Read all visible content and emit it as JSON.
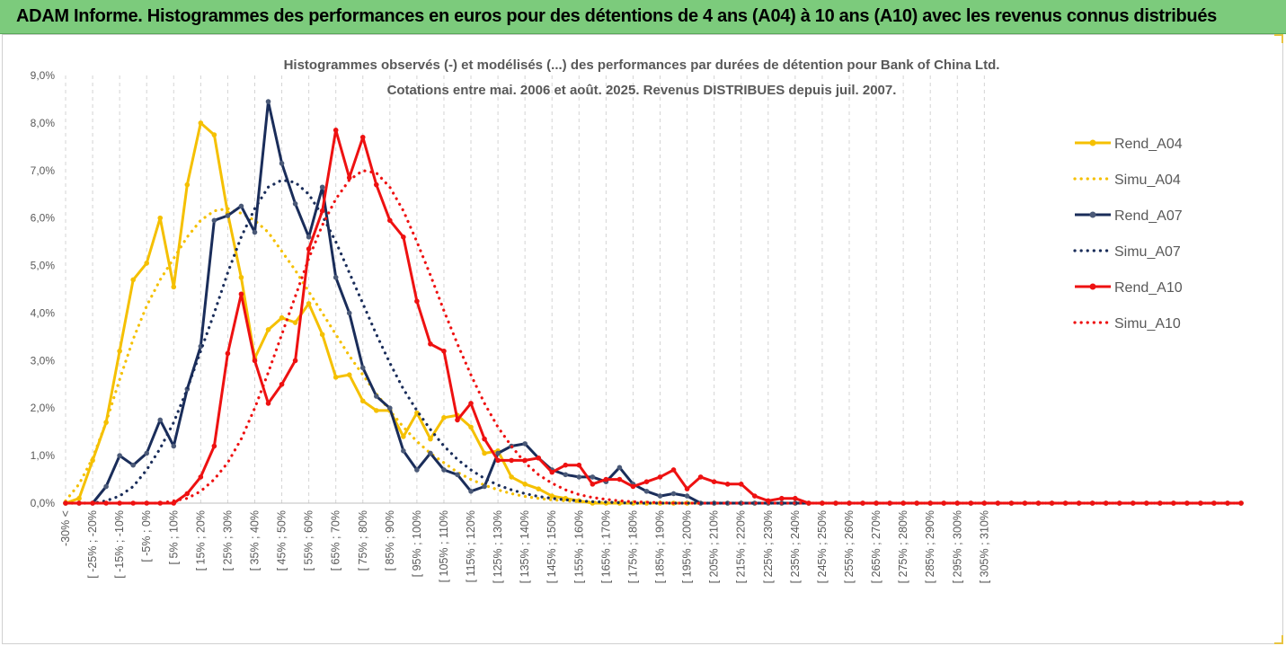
{
  "banner": {
    "title": "ADAM Informe. Histogrammes des performances en euros pour des détentions de 4 ans (A04) à 10 ans (A10) avec les revenus connus distribués",
    "background": "#7ccb7c"
  },
  "chart_data": {
    "type": "line",
    "title_lines": [
      "Histogrammes observés (-) et modélisés (...) des performances par durées de détention pour Bank of China Ltd.",
      "Cotations entre mai. 2006 et août. 2025. Revenus DISTRIBUES depuis juil. 2007."
    ],
    "ylim": [
      0,
      9
    ],
    "y_ticks": [
      "0,0%",
      "1,0%",
      "2,0%",
      "3,0%",
      "4,0%",
      "5,0%",
      "6,0%",
      "7,0%",
      "8,0%",
      "9,0%"
    ],
    "x_tick_labels": [
      "-30% <",
      "[ -25% ; -20%",
      "[ -15% ; -10%",
      "[ -5% ; 0%",
      "[ 5% ; 10%",
      "[ 15% ; 20%",
      "[ 25% ; 30%",
      "[ 35% ; 40%",
      "[ 45% ; 50%",
      "[ 55% ; 60%",
      "[ 65% ; 70%",
      "[ 75% ; 80%",
      "[ 85% ; 90%",
      "[ 95% ; 100%",
      "[ 105% ; 110%",
      "[ 115% ; 120%",
      "[ 125% ; 130%",
      "[ 135% ; 140%",
      "[ 145% ; 150%",
      "[ 155% ; 160%",
      "[ 165% ; 170%",
      "[ 175% ; 180%",
      "[ 185% ; 190%",
      "[ 195% ; 200%",
      "[ 205% ; 210%",
      "[ 215% ; 220%",
      "[ 225% ; 230%",
      "[ 235% ; 240%",
      "[ 245% ; 250%",
      "[ 255% ; 260%",
      "[ 265% ; 270%",
      "[ 275% ; 280%",
      "[ 285% ; 290%",
      "[ 295% ; 300%",
      "[ 305% ; 310%"
    ],
    "legend_position": "right",
    "grid": "vertical-dashed",
    "series": [
      {
        "name": "Rend_A04",
        "style": "solid",
        "color": "#f5c000",
        "values": [
          0,
          0.1,
          0.9,
          1.7,
          3.2,
          4.7,
          5.05,
          6.0,
          4.55,
          6.7,
          8.0,
          7.75,
          6.1,
          4.75,
          3.05,
          3.65,
          3.9,
          3.8,
          4.2,
          3.55,
          2.65,
          2.7,
          2.15,
          1.95,
          1.95,
          1.4,
          1.9,
          1.35,
          1.8,
          1.85,
          1.6,
          1.05,
          1.1,
          0.55,
          0.4,
          0.3,
          0.15,
          0.1,
          0.05,
          0,
          0,
          0,
          0,
          0,
          0,
          0,
          0,
          0,
          0,
          0,
          0,
          0,
          0,
          0,
          0,
          0,
          0,
          0,
          0,
          0,
          0,
          0,
          0,
          0,
          0,
          0,
          0,
          0,
          0,
          0,
          0,
          0,
          0,
          0,
          0,
          0,
          0,
          0,
          0,
          0,
          0,
          0,
          0,
          0,
          0,
          0,
          0,
          0
        ]
      },
      {
        "name": "Simu_A04",
        "style": "dotted",
        "color": "#f5c000",
        "values": [
          0.05,
          0.4,
          0.95,
          1.7,
          2.6,
          3.45,
          4.15,
          4.7,
          5.15,
          5.6,
          5.95,
          6.15,
          6.2,
          6.1,
          5.95,
          5.7,
          5.3,
          4.9,
          4.45,
          4.0,
          3.55,
          3.1,
          2.7,
          2.3,
          1.95,
          1.6,
          1.3,
          1.05,
          0.85,
          0.65,
          0.5,
          0.38,
          0.28,
          0.2,
          0.14,
          0.1,
          0.07,
          0.05,
          0.03,
          0.02,
          0.01,
          0,
          0,
          0,
          0,
          0,
          0,
          0,
          0,
          0,
          0,
          0,
          0,
          0,
          0,
          0,
          0,
          0,
          0,
          0,
          0,
          0,
          0,
          0,
          0,
          0,
          0,
          0,
          0,
          0,
          0,
          0,
          0,
          0,
          0,
          0,
          0,
          0,
          0,
          0,
          0,
          0,
          0,
          0,
          0,
          0,
          0,
          0
        ]
      },
      {
        "name": "Rend_A07",
        "style": "solid",
        "color": "#1a2d5a",
        "values": [
          0,
          0,
          0,
          0.35,
          1.0,
          0.8,
          1.05,
          1.75,
          1.2,
          2.4,
          3.3,
          5.95,
          6.05,
          6.25,
          5.7,
          8.45,
          7.15,
          6.3,
          5.6,
          6.65,
          4.75,
          4.0,
          2.85,
          2.25,
          2.0,
          1.1,
          0.7,
          1.05,
          0.7,
          0.6,
          0.25,
          0.35,
          1.05,
          1.2,
          1.25,
          0.95,
          0.7,
          0.6,
          0.55,
          0.55,
          0.45,
          0.75,
          0.4,
          0.25,
          0.15,
          0.2,
          0.15,
          0.0,
          0,
          0,
          0,
          0,
          0,
          0,
          0,
          0,
          0,
          0,
          0,
          0,
          0,
          0,
          0,
          0,
          0,
          0,
          0,
          0,
          0,
          0,
          0,
          0,
          0,
          0,
          0,
          0,
          0,
          0,
          0,
          0,
          0,
          0,
          0,
          0,
          0,
          0,
          0,
          0
        ]
      },
      {
        "name": "Simu_A07",
        "style": "dotted",
        "color": "#1a2d5a",
        "values": [
          0,
          0,
          0,
          0.05,
          0.15,
          0.35,
          0.7,
          1.15,
          1.7,
          2.4,
          3.2,
          4.0,
          4.85,
          5.6,
          6.2,
          6.65,
          6.8,
          6.75,
          6.5,
          6.05,
          5.5,
          4.85,
          4.2,
          3.55,
          2.95,
          2.4,
          1.95,
          1.55,
          1.2,
          0.92,
          0.7,
          0.52,
          0.38,
          0.28,
          0.2,
          0.14,
          0.1,
          0.07,
          0.05,
          0.03,
          0.02,
          0.01,
          0,
          0,
          0,
          0,
          0,
          0,
          0,
          0,
          0,
          0,
          0,
          0,
          0,
          0,
          0,
          0,
          0,
          0,
          0,
          0,
          0,
          0,
          0,
          0,
          0,
          0,
          0,
          0,
          0,
          0,
          0,
          0,
          0,
          0,
          0,
          0,
          0,
          0,
          0,
          0,
          0,
          0,
          0,
          0,
          0,
          0
        ]
      },
      {
        "name": "Rend_A10",
        "style": "solid",
        "color": "#ee1111",
        "values": [
          0,
          0,
          0,
          0,
          0,
          0,
          0,
          0,
          0,
          0.2,
          0.55,
          1.2,
          3.15,
          4.4,
          3.0,
          2.1,
          2.5,
          3.0,
          5.35,
          6.15,
          7.85,
          6.85,
          7.7,
          6.7,
          5.95,
          5.6,
          4.25,
          3.35,
          3.2,
          1.75,
          2.1,
          1.35,
          0.9,
          0.9,
          0.9,
          0.95,
          0.65,
          0.8,
          0.8,
          0.4,
          0.5,
          0.5,
          0.35,
          0.45,
          0.55,
          0.7,
          0.3,
          0.55,
          0.45,
          0.4,
          0.4,
          0.15,
          0.05,
          0.1,
          0.1,
          0.0,
          0,
          0,
          0,
          0,
          0,
          0,
          0,
          0,
          0,
          0,
          0,
          0,
          0,
          0,
          0,
          0,
          0,
          0,
          0,
          0,
          0,
          0,
          0,
          0,
          0,
          0,
          0,
          0,
          0,
          0,
          0,
          0
        ]
      },
      {
        "name": "Simu_A10",
        "style": "dotted",
        "color": "#ee1111",
        "values": [
          0,
          0,
          0,
          0,
          0,
          0,
          0,
          0,
          0.05,
          0.1,
          0.25,
          0.5,
          0.85,
          1.35,
          2.0,
          2.75,
          3.55,
          4.35,
          5.15,
          5.85,
          6.4,
          6.8,
          7.0,
          6.95,
          6.65,
          6.15,
          5.5,
          4.8,
          4.05,
          3.35,
          2.7,
          2.1,
          1.6,
          1.2,
          0.85,
          0.6,
          0.42,
          0.28,
          0.18,
          0.12,
          0.08,
          0.05,
          0.03,
          0.02,
          0.01,
          0,
          0,
          0,
          0,
          0,
          0,
          0,
          0,
          0,
          0,
          0,
          0,
          0,
          0,
          0,
          0,
          0,
          0,
          0,
          0,
          0,
          0,
          0,
          0,
          0,
          0,
          0,
          0,
          0,
          0,
          0,
          0,
          0,
          0,
          0,
          0,
          0,
          0,
          0,
          0,
          0,
          0,
          0
        ]
      }
    ]
  }
}
